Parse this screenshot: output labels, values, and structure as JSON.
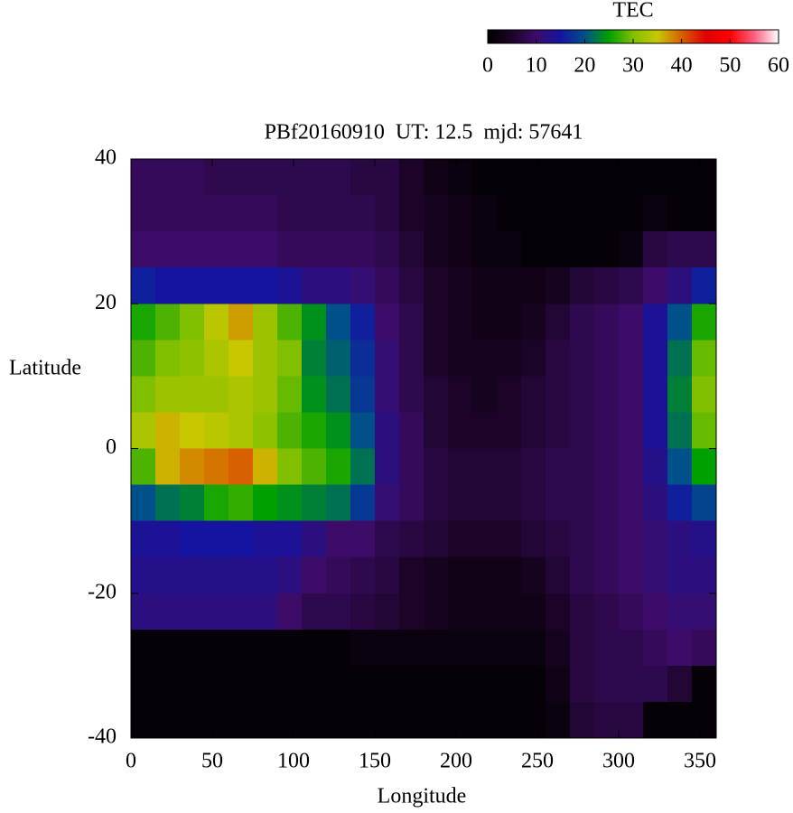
{
  "chart_data": {
    "type": "heatmap",
    "title": "PBf20160910  UT: 12.5  mjd: 57641",
    "xlabel": "Longitude",
    "ylabel": "Latitude",
    "xlim": [
      0,
      360
    ],
    "ylim": [
      -40,
      40
    ],
    "xticks": [
      0,
      50,
      100,
      150,
      200,
      250,
      300,
      350
    ],
    "yticks": [
      -40,
      -20,
      0,
      20,
      40
    ],
    "x": [
      7.5,
      22.5,
      37.5,
      52.5,
      67.5,
      82.5,
      97.5,
      112.5,
      127.5,
      142.5,
      157.5,
      172.5,
      187.5,
      202.5,
      217.5,
      232.5,
      247.5,
      262.5,
      277.5,
      292.5,
      307.5,
      322.5,
      337.5,
      352.5
    ],
    "y": [
      37.5,
      32.5,
      27.5,
      22.5,
      17.5,
      12.5,
      7.5,
      2.5,
      -2.5,
      -7.5,
      -12.5,
      -17.5,
      -22.5,
      -27.5,
      -32.5,
      -37.5
    ],
    "z": [
      [
        9,
        9,
        9,
        8,
        8,
        8,
        8,
        8,
        8,
        7,
        7,
        5,
        3,
        2,
        1,
        1,
        1,
        1,
        1,
        1,
        1,
        1,
        1,
        1
      ],
      [
        9,
        9,
        9,
        9,
        9,
        9,
        8,
        8,
        8,
        8,
        7,
        5,
        4,
        3,
        2,
        1,
        1,
        1,
        1,
        1,
        1,
        2,
        1,
        1
      ],
      [
        10,
        10,
        10,
        10,
        10,
        10,
        9,
        9,
        9,
        9,
        8,
        6,
        4,
        3,
        2,
        2,
        1,
        1,
        1,
        1,
        2,
        7,
        8,
        8
      ],
      [
        16,
        15,
        15,
        15,
        15,
        15,
        14,
        12,
        12,
        11,
        9,
        7,
        5,
        4,
        3,
        3,
        3,
        4,
        6,
        7,
        8,
        10,
        12,
        16
      ],
      [
        26,
        28,
        30,
        34,
        37,
        32,
        28,
        24,
        20,
        16,
        10,
        8,
        5,
        4,
        3,
        3,
        4,
        6,
        8,
        9,
        10,
        14,
        20,
        26
      ],
      [
        28,
        30,
        31,
        33,
        35,
        32,
        30,
        23,
        21,
        17,
        11,
        8,
        5,
        4,
        4,
        4,
        5,
        7,
        8,
        9,
        10,
        14,
        22,
        29
      ],
      [
        30,
        32,
        32,
        32,
        33,
        32,
        29,
        24,
        22,
        18,
        11,
        8,
        6,
        5,
        4,
        5,
        6,
        7,
        8,
        9,
        10,
        14,
        23,
        30
      ],
      [
        33,
        36,
        35,
        34,
        33,
        31,
        28,
        26,
        24,
        20,
        12,
        9,
        6,
        5,
        5,
        5,
        6,
        7,
        8,
        9,
        10,
        14,
        22,
        29
      ],
      [
        28,
        36,
        38,
        39,
        40,
        36,
        30,
        28,
        26,
        22,
        12,
        9,
        7,
        6,
        6,
        6,
        7,
        8,
        8,
        9,
        10,
        13,
        20,
        25
      ],
      [
        20,
        22,
        23,
        26,
        27,
        25,
        24,
        23,
        22,
        18,
        11,
        9,
        7,
        6,
        6,
        6,
        7,
        8,
        8,
        9,
        10,
        12,
        16,
        19
      ],
      [
        14,
        14,
        15,
        15,
        15,
        14,
        14,
        12,
        10,
        10,
        8,
        7,
        6,
        5,
        5,
        5,
        6,
        7,
        8,
        9,
        10,
        11,
        12,
        13
      ],
      [
        13,
        13,
        13,
        13,
        13,
        13,
        12,
        10,
        9,
        8,
        7,
        5,
        4,
        3,
        3,
        3,
        4,
        6,
        8,
        9,
        10,
        11,
        12,
        12
      ],
      [
        12,
        12,
        12,
        12,
        12,
        12,
        10,
        8,
        8,
        7,
        6,
        5,
        4,
        3,
        3,
        3,
        3,
        5,
        7,
        8,
        9,
        10,
        11,
        11
      ],
      [
        1,
        1,
        1,
        1,
        1,
        1,
        1,
        1,
        1,
        2,
        2,
        2,
        2,
        2,
        2,
        2,
        2,
        4,
        7,
        8,
        8,
        9,
        10,
        9
      ],
      [
        1,
        1,
        1,
        1,
        1,
        1,
        1,
        1,
        1,
        1,
        1,
        1,
        1,
        1,
        1,
        1,
        1,
        3,
        7,
        8,
        8,
        8,
        6,
        1
      ],
      [
        1,
        1,
        1,
        1,
        1,
        1,
        1,
        1,
        1,
        1,
        1,
        1,
        1,
        1,
        1,
        1,
        1,
        2,
        6,
        7,
        7,
        1,
        1,
        1
      ]
    ],
    "colorbar": {
      "label": "TEC",
      "lim": [
        0,
        60
      ],
      "ticks": [
        0,
        10,
        20,
        30,
        40,
        50,
        60
      ],
      "colors": [
        "#000000",
        "#1c0428",
        "#3c0c68",
        "#1414a0",
        "#00508a",
        "#00a000",
        "#80c000",
        "#c8c800",
        "#d86000",
        "#e00000",
        "#ff0000",
        "#ff6080",
        "#ffffff"
      ]
    }
  }
}
